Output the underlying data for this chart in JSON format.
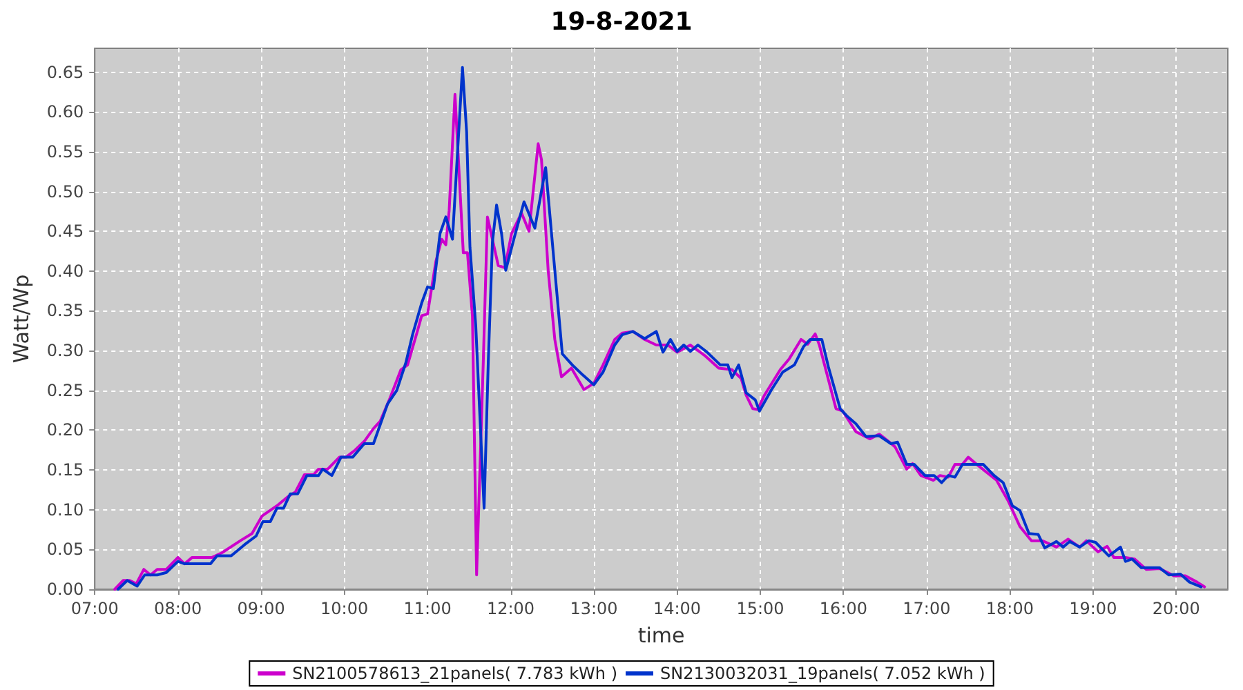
{
  "chart_data": {
    "type": "line",
    "title": "19-8-2021",
    "xlabel": "time",
    "ylabel": "Watt/Wp",
    "xlim": [
      7,
      20.62
    ],
    "xticks": [
      {
        "value": 7,
        "label": "07:00"
      },
      {
        "value": 8,
        "label": "08:00"
      },
      {
        "value": 9,
        "label": "09:00"
      },
      {
        "value": 10,
        "label": "10:00"
      },
      {
        "value": 11,
        "label": "11:00"
      },
      {
        "value": 12,
        "label": "12:00"
      },
      {
        "value": 13,
        "label": "13:00"
      },
      {
        "value": 14,
        "label": "14:00"
      },
      {
        "value": 15,
        "label": "15:00"
      },
      {
        "value": 16,
        "label": "16:00"
      },
      {
        "value": 17,
        "label": "17:00"
      },
      {
        "value": 18,
        "label": "18:00"
      },
      {
        "value": 19,
        "label": "19:00"
      },
      {
        "value": 20,
        "label": "20:00"
      }
    ],
    "ylim": [
      0,
      0.68
    ],
    "yticks": [
      {
        "value": 0,
        "label": "0.00"
      },
      0.05,
      {
        "value": 0.1,
        "label": "0.10"
      },
      0.15,
      {
        "value": 0.2,
        "label": "0.20"
      },
      0.25,
      {
        "value": 0.3,
        "label": "0.30"
      },
      0.35,
      {
        "value": 0.4,
        "label": "0.40"
      },
      0.45,
      {
        "value": 0.5,
        "label": "0.50"
      },
      0.55,
      {
        "value": 0.6,
        "label": "0.60"
      },
      0.65
    ],
    "grid": true,
    "legend": "bottom",
    "series": [
      {
        "name": "SN2100578613_21panels( 7.783 kWh )",
        "color": "#cc00cc",
        "x": [
          7.24,
          7.34,
          7.42,
          7.5,
          7.59,
          7.67,
          7.75,
          7.86,
          8.0,
          8.08,
          8.17,
          8.41,
          8.53,
          8.75,
          8.89,
          9.01,
          9.19,
          9.33,
          9.41,
          9.52,
          9.63,
          9.69,
          9.8,
          9.94,
          10.02,
          10.13,
          10.24,
          10.35,
          10.43,
          10.54,
          10.68,
          10.76,
          10.88,
          10.93,
          11.0,
          11.1,
          11.17,
          11.22,
          11.26,
          11.33,
          11.43,
          11.48,
          11.54,
          11.59,
          11.67,
          11.72,
          11.85,
          11.93,
          12.01,
          12.13,
          12.22,
          12.33,
          12.37,
          12.45,
          12.53,
          12.61,
          12.73,
          12.88,
          13.0,
          13.11,
          13.25,
          13.34,
          13.47,
          13.61,
          13.75,
          13.89,
          14.0,
          14.16,
          14.33,
          14.5,
          14.66,
          14.77,
          14.83,
          14.91,
          14.97,
          15.05,
          15.24,
          15.35,
          15.49,
          15.57,
          15.66,
          15.71,
          15.91,
          15.99,
          16.15,
          16.32,
          16.43,
          16.54,
          16.62,
          16.76,
          16.83,
          16.93,
          17.08,
          17.16,
          17.26,
          17.34,
          17.43,
          17.5,
          17.59,
          17.84,
          17.98,
          18.12,
          18.26,
          18.39,
          18.56,
          18.7,
          18.84,
          18.92,
          19.06,
          19.17,
          19.25,
          19.39,
          19.5,
          19.64,
          19.8,
          19.97,
          20.11,
          20.25,
          20.34
        ],
        "values": [
          0,
          0.011,
          0.011,
          0.007,
          0.025,
          0.018,
          0.025,
          0.025,
          0.04,
          0.032,
          0.04,
          0.04,
          0.046,
          0.061,
          0.07,
          0.092,
          0.105,
          0.117,
          0.122,
          0.144,
          0.144,
          0.151,
          0.151,
          0.166,
          0.166,
          0.175,
          0.186,
          0.202,
          0.211,
          0.238,
          0.276,
          0.282,
          0.325,
          0.344,
          0.346,
          0.412,
          0.44,
          0.433,
          0.476,
          0.622,
          0.423,
          0.423,
          0.343,
          0.018,
          0.285,
          0.468,
          0.407,
          0.404,
          0.447,
          0.473,
          0.45,
          0.56,
          0.54,
          0.401,
          0.314,
          0.267,
          0.278,
          0.251,
          0.259,
          0.282,
          0.314,
          0.322,
          0.324,
          0.314,
          0.307,
          0.307,
          0.298,
          0.307,
          0.294,
          0.278,
          0.276,
          0.265,
          0.244,
          0.227,
          0.226,
          0.244,
          0.276,
          0.29,
          0.314,
          0.308,
          0.321,
          0.307,
          0.227,
          0.224,
          0.198,
          0.189,
          0.195,
          0.186,
          0.179,
          0.151,
          0.158,
          0.143,
          0.137,
          0.143,
          0.141,
          0.157,
          0.157,
          0.166,
          0.158,
          0.137,
          0.111,
          0.079,
          0.061,
          0.061,
          0.053,
          0.063,
          0.053,
          0.061,
          0.047,
          0.054,
          0.04,
          0.04,
          0.038,
          0.025,
          0.026,
          0.017,
          0.017,
          0.009,
          0.003
        ]
      },
      {
        "name": "SN2130032031_19panels( 7.052 kWh )",
        "color": "#0033cc",
        "x": [
          7.28,
          7.39,
          7.51,
          7.6,
          7.75,
          7.86,
          8.0,
          8.08,
          8.39,
          8.47,
          8.64,
          8.8,
          8.94,
          9.02,
          9.11,
          9.19,
          9.27,
          9.35,
          9.44,
          9.55,
          9.69,
          9.74,
          9.85,
          9.96,
          10.1,
          10.24,
          10.35,
          10.52,
          10.63,
          10.74,
          10.82,
          10.93,
          11.0,
          11.07,
          11.15,
          11.22,
          11.3,
          11.42,
          11.47,
          11.51,
          11.58,
          11.68,
          11.73,
          11.78,
          11.83,
          11.89,
          11.94,
          12.04,
          12.16,
          12.29,
          12.42,
          12.53,
          12.62,
          12.74,
          12.87,
          13.0,
          13.11,
          13.25,
          13.34,
          13.47,
          13.61,
          13.75,
          13.83,
          13.92,
          14.0,
          14.08,
          14.16,
          14.25,
          14.36,
          14.52,
          14.61,
          14.66,
          14.74,
          14.83,
          14.94,
          14.99,
          15.13,
          15.27,
          15.41,
          15.52,
          15.6,
          15.74,
          15.82,
          15.96,
          16.04,
          16.15,
          16.27,
          16.43,
          16.57,
          16.65,
          16.76,
          16.85,
          16.98,
          17.09,
          17.18,
          17.26,
          17.34,
          17.43,
          17.68,
          17.81,
          17.92,
          18.03,
          18.12,
          18.23,
          18.34,
          18.42,
          18.56,
          18.64,
          18.72,
          18.84,
          18.95,
          19.03,
          19.19,
          19.33,
          19.39,
          19.47,
          19.58,
          19.8,
          19.91,
          20.05,
          20.16,
          20.3
        ],
        "values": [
          0,
          0.011,
          0.004,
          0.018,
          0.018,
          0.021,
          0.035,
          0.032,
          0.032,
          0.042,
          0.042,
          0.056,
          0.067,
          0.085,
          0.085,
          0.102,
          0.102,
          0.12,
          0.12,
          0.143,
          0.143,
          0.151,
          0.143,
          0.166,
          0.166,
          0.183,
          0.183,
          0.233,
          0.25,
          0.285,
          0.32,
          0.36,
          0.38,
          0.378,
          0.447,
          0.468,
          0.44,
          0.656,
          0.575,
          0.43,
          0.331,
          0.102,
          0.285,
          0.436,
          0.483,
          0.447,
          0.401,
          0.441,
          0.487,
          0.454,
          0.53,
          0.401,
          0.296,
          0.282,
          0.269,
          0.257,
          0.273,
          0.307,
          0.32,
          0.324,
          0.315,
          0.324,
          0.298,
          0.314,
          0.299,
          0.307,
          0.299,
          0.307,
          0.298,
          0.282,
          0.282,
          0.266,
          0.282,
          0.247,
          0.238,
          0.224,
          0.25,
          0.273,
          0.282,
          0.305,
          0.314,
          0.314,
          0.279,
          0.227,
          0.218,
          0.208,
          0.192,
          0.193,
          0.183,
          0.185,
          0.157,
          0.157,
          0.143,
          0.143,
          0.134,
          0.143,
          0.141,
          0.157,
          0.157,
          0.143,
          0.134,
          0.105,
          0.099,
          0.07,
          0.069,
          0.052,
          0.06,
          0.053,
          0.06,
          0.053,
          0.061,
          0.059,
          0.042,
          0.053,
          0.035,
          0.038,
          0.027,
          0.027,
          0.018,
          0.019,
          0.009,
          0.003
        ]
      }
    ]
  }
}
